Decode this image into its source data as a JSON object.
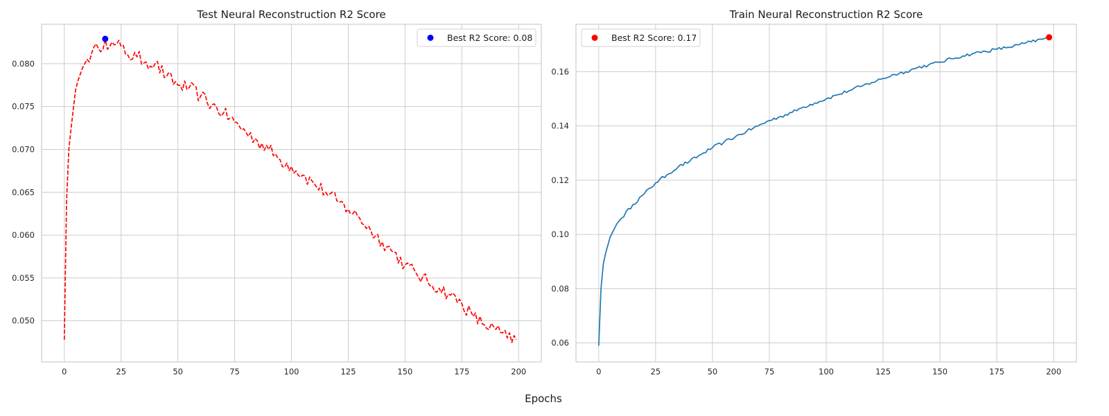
{
  "figure": {
    "xlabel": "Epochs"
  },
  "chart_data": [
    {
      "type": "line",
      "title": "Test Neural Reconstruction R2 Score",
      "xlabel": "",
      "ylabel": "",
      "xlim": [
        -10,
        210
      ],
      "ylim": [
        0.0452,
        0.0846
      ],
      "xticks": [
        0,
        25,
        50,
        75,
        100,
        125,
        150,
        175,
        200
      ],
      "yticks": [
        0.05,
        0.055,
        0.06,
        0.065,
        0.07,
        0.075,
        0.08
      ],
      "ytick_decimals": 3,
      "grid": true,
      "legend_position": "upper-right",
      "series": [
        {
          "style": "dashed",
          "color": "#ff0000",
          "keyframes": [
            [
              0,
              0.0478
            ],
            [
              1,
              0.064
            ],
            [
              2,
              0.07
            ],
            [
              3,
              0.0725
            ],
            [
              4,
              0.0748
            ],
            [
              5,
              0.077
            ],
            [
              6,
              0.078
            ],
            [
              8,
              0.0795
            ],
            [
              10,
              0.0805
            ],
            [
              12,
              0.0812
            ],
            [
              15,
              0.0818
            ],
            [
              18,
              0.0828
            ],
            [
              20,
              0.082
            ],
            [
              22,
              0.0822
            ],
            [
              25,
              0.082
            ],
            [
              28,
              0.081
            ],
            [
              32,
              0.0808
            ],
            [
              36,
              0.0802
            ],
            [
              40,
              0.08
            ],
            [
              45,
              0.0785
            ],
            [
              50,
              0.0775
            ],
            [
              55,
              0.0772
            ],
            [
              60,
              0.0762
            ],
            [
              65,
              0.0752
            ],
            [
              70,
              0.0742
            ],
            [
              75,
              0.0732
            ],
            [
              80,
              0.072
            ],
            [
              85,
              0.071
            ],
            [
              90,
              0.07
            ],
            [
              95,
              0.0688
            ],
            [
              100,
              0.068
            ],
            [
              105,
              0.067
            ],
            [
              110,
              0.066
            ],
            [
              115,
              0.065
            ],
            [
              120,
              0.064
            ],
            [
              125,
              0.063
            ],
            [
              130,
              0.062
            ],
            [
              135,
              0.0605
            ],
            [
              140,
              0.0592
            ],
            [
              145,
              0.058
            ],
            [
              150,
              0.0565
            ],
            [
              155,
              0.0555
            ],
            [
              160,
              0.0545
            ],
            [
              165,
              0.0538
            ],
            [
              170,
              0.053
            ],
            [
              175,
              0.052
            ],
            [
              180,
              0.0505
            ],
            [
              185,
              0.0495
            ],
            [
              190,
              0.049
            ],
            [
              195,
              0.048
            ],
            [
              199,
              0.0478
            ]
          ],
          "noise_amplitude": 0.0008,
          "noise_start_x": 10
        }
      ],
      "marker": {
        "x": 18,
        "y": 0.0829,
        "color": "#0000ff",
        "label": "Best R2 Score: 0.08"
      }
    },
    {
      "type": "line",
      "title": "Train Neural Reconstruction R2 Score",
      "xlabel": "",
      "ylabel": "",
      "xlim": [
        -10,
        210
      ],
      "ylim": [
        0.053,
        0.1775
      ],
      "xticks": [
        0,
        25,
        50,
        75,
        100,
        125,
        150,
        175,
        200
      ],
      "yticks": [
        0.06,
        0.08,
        0.1,
        0.12,
        0.14,
        0.16
      ],
      "ytick_decimals": 2,
      "grid": true,
      "legend_position": "upper-left",
      "series": [
        {
          "style": "solid",
          "color": "#1f77b4",
          "keyframes": [
            [
              0,
              0.059
            ],
            [
              1,
              0.08
            ],
            [
              2,
              0.089
            ],
            [
              3,
              0.093
            ],
            [
              5,
              0.099
            ],
            [
              8,
              0.104
            ],
            [
              10,
              0.106
            ],
            [
              15,
              0.111
            ],
            [
              20,
              0.115
            ],
            [
              25,
              0.119
            ],
            [
              30,
              0.122
            ],
            [
              35,
              0.125
            ],
            [
              40,
              0.127
            ],
            [
              45,
              0.1295
            ],
            [
              50,
              0.132
            ],
            [
              55,
              0.134
            ],
            [
              60,
              0.136
            ],
            [
              65,
              0.138
            ],
            [
              70,
              0.14
            ],
            [
              75,
              0.142
            ],
            [
              80,
              0.1435
            ],
            [
              85,
              0.145
            ],
            [
              90,
              0.147
            ],
            [
              95,
              0.1485
            ],
            [
              100,
              0.15
            ],
            [
              105,
              0.1515
            ],
            [
              110,
              0.153
            ],
            [
              115,
              0.1545
            ],
            [
              120,
              0.156
            ],
            [
              125,
              0.1575
            ],
            [
              130,
              0.159
            ],
            [
              135,
              0.16
            ],
            [
              140,
              0.1615
            ],
            [
              145,
              0.1625
            ],
            [
              150,
              0.1635
            ],
            [
              155,
              0.1648
            ],
            [
              160,
              0.1658
            ],
            [
              165,
              0.1668
            ],
            [
              170,
              0.1675
            ],
            [
              175,
              0.1683
            ],
            [
              180,
              0.169
            ],
            [
              185,
              0.17
            ],
            [
              190,
              0.171
            ],
            [
              195,
              0.172
            ],
            [
              198,
              0.1727
            ]
          ],
          "noise_amplitude": 0.0006,
          "noise_start_x": 10
        }
      ],
      "marker": {
        "x": 198,
        "y": 0.1727,
        "color": "#ff0000",
        "label": "Best R2 Score: 0.17"
      }
    }
  ]
}
